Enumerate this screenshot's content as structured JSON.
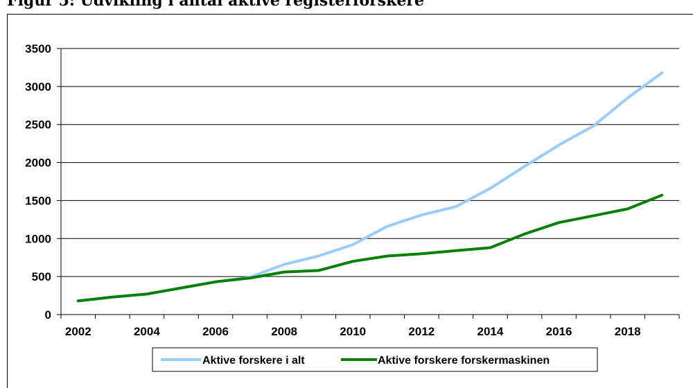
{
  "figure": {
    "title": "Figur 5: Udvikling i antal aktive registerforskere"
  },
  "chart_data": {
    "type": "line",
    "title": "Figur 5: Udvikling i antal aktive registerforskere",
    "xlabel": "",
    "ylabel": "",
    "x": [
      2002,
      2003,
      2004,
      2005,
      2006,
      2007,
      2008,
      2009,
      2010,
      2011,
      2012,
      2013,
      2014,
      2015,
      2016,
      2017,
      2018,
      2019
    ],
    "xticks": [
      "2002",
      "2004",
      "2006",
      "2008",
      "2010",
      "2012",
      "2014",
      "2016",
      "2018"
    ],
    "ylim": [
      0,
      3500
    ],
    "yticks": [
      "0",
      "500",
      "1000",
      "1500",
      "2000",
      "2500",
      "3000",
      "3500"
    ],
    "grid": true,
    "legend_position": "bottom",
    "series": [
      {
        "name": "Aktive forskere i alt",
        "color": "#99ccff",
        "values": [
          180,
          230,
          270,
          350,
          430,
          490,
          660,
          770,
          920,
          1160,
          1310,
          1420,
          1660,
          1950,
          2230,
          2480,
          2850,
          3180
        ]
      },
      {
        "name": "Aktive forskere forskermaskinen",
        "color": "#008000",
        "values": [
          180,
          230,
          270,
          350,
          430,
          480,
          560,
          580,
          700,
          770,
          800,
          840,
          880,
          1060,
          1210,
          1300,
          1390,
          1570
        ]
      }
    ]
  }
}
